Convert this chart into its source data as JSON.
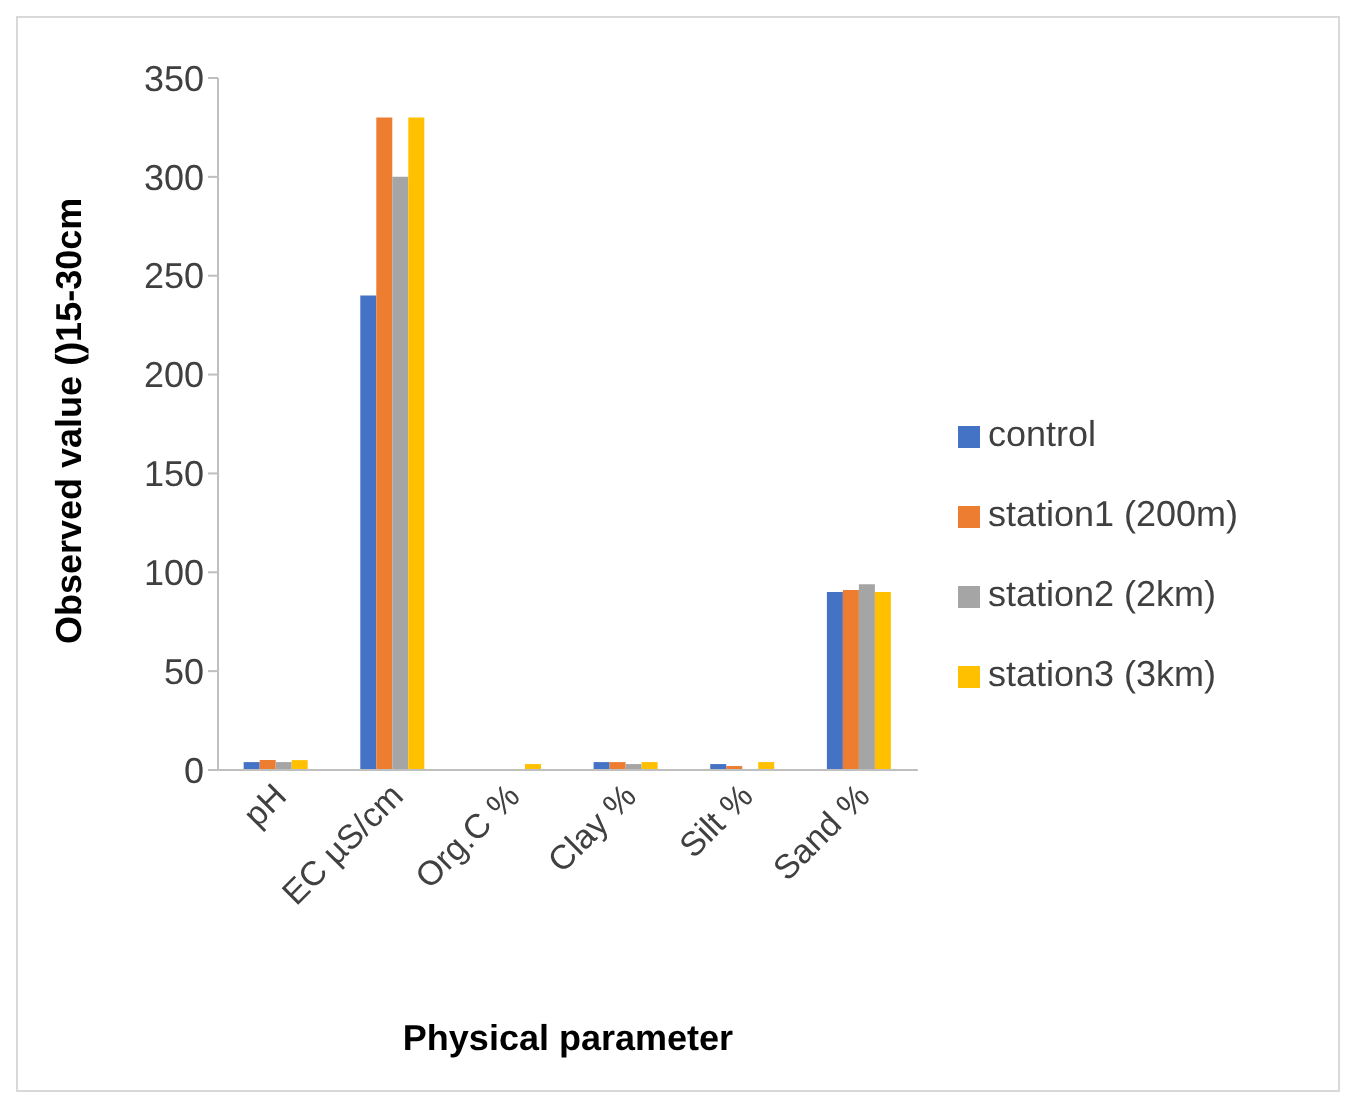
{
  "chart_data": {
    "type": "bar",
    "xlabel": "Physical parameter",
    "ylabel": "Observed value ()15-30cm",
    "categories": [
      "pH",
      "EC µS/cm",
      "Org.C %",
      "Clay %",
      "Silt %",
      "Sand %"
    ],
    "series": [
      {
        "name": "control",
        "color": "#4472c4",
        "values": [
          4,
          240,
          null,
          4,
          3,
          90
        ]
      },
      {
        "name": "station1 (200m)",
        "color": "#ed7d31",
        "values": [
          5,
          330,
          null,
          4,
          2,
          91
        ]
      },
      {
        "name": "station2 (2km)",
        "color": "#a5a5a5",
        "values": [
          4,
          300,
          null,
          3,
          null,
          94
        ]
      },
      {
        "name": "station3 (3km)",
        "color": "#ffc000",
        "values": [
          5,
          330,
          3,
          4,
          4,
          90
        ]
      }
    ],
    "ylim": [
      0,
      350
    ],
    "yticks": [
      0,
      50,
      100,
      150,
      200,
      250,
      300,
      350
    ],
    "grid": false,
    "legend": "right"
  }
}
